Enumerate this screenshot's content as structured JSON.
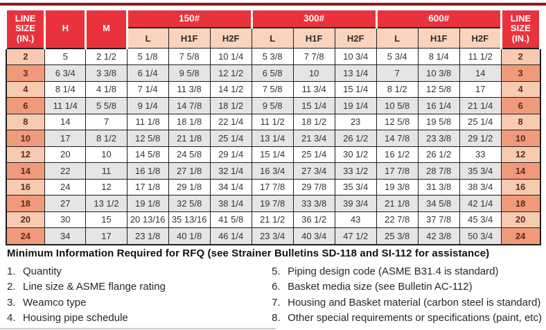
{
  "colors": {
    "header_red": "#e8323c",
    "top_strip_maroon": "#8e191c",
    "subheader_peach": "#f9d3bc",
    "line_col_light": "#f7cbb1",
    "line_col_dark": "#f19a7b",
    "stripe_gray": "#e5e5e5"
  },
  "table": {
    "header": {
      "line_size_left": "LINE SIZE (IN.)",
      "h": "H",
      "m": "M",
      "groups": [
        {
          "label": "150#"
        },
        {
          "label": "300#"
        },
        {
          "label": "600#"
        }
      ],
      "sub_columns": [
        "L",
        "H1F",
        "H2F"
      ],
      "line_size_right": "LINE SIZE (IN.)"
    },
    "rows": [
      {
        "line_size": "2",
        "h": "5",
        "m": "2 1/2",
        "c150": [
          "5 1/8",
          "7 5/8",
          "10 1/4"
        ],
        "c300": [
          "5 3/8",
          "7 7/8",
          "10 3/4"
        ],
        "c600": [
          "5 3/4",
          "8 1/4",
          "11 1/2"
        ]
      },
      {
        "line_size": "3",
        "h": "6 3/4",
        "m": "3 3/8",
        "c150": [
          "6 1/4",
          "9 5/8",
          "12 1/2"
        ],
        "c300": [
          "6 5/8",
          "10",
          "13 1/4"
        ],
        "c600": [
          "7",
          "10 3/8",
          "14"
        ]
      },
      {
        "line_size": "4",
        "h": "8 1/4",
        "m": "4 1/8",
        "c150": [
          "7 1/4",
          "11 3/8",
          "14 1/2"
        ],
        "c300": [
          "7 5/8",
          "11 3/4",
          "15 1/4"
        ],
        "c600": [
          "8 1/2",
          "12 5/8",
          "17"
        ]
      },
      {
        "line_size": "6",
        "h": "11 1/4",
        "m": "5 5/8",
        "c150": [
          "9 1/4",
          "14 7/8",
          "18 1/2"
        ],
        "c300": [
          "9 5/8",
          "15 1/4",
          "19 1/4"
        ],
        "c600": [
          "10 5/8",
          "16 1/4",
          "21 1/4"
        ]
      },
      {
        "line_size": "8",
        "h": "14",
        "m": "7",
        "c150": [
          "11 1/8",
          "18 1/8",
          "22 1/4"
        ],
        "c300": [
          "11 1/2",
          "18 1/2",
          "23"
        ],
        "c600": [
          "12 5/8",
          "19 5/8",
          "25 1/4"
        ]
      },
      {
        "line_size": "10",
        "h": "17",
        "m": "8 1/2",
        "c150": [
          "12 5/8",
          "21 1/8",
          "25 1/4"
        ],
        "c300": [
          "13 1/4",
          "21 3/4",
          "26 1/2"
        ],
        "c600": [
          "14 7/8",
          "23 3/8",
          "29 1/2"
        ]
      },
      {
        "line_size": "12",
        "h": "20",
        "m": "10",
        "c150": [
          "14 5/8",
          "24 5/8",
          "29 1/4"
        ],
        "c300": [
          "15 1/4",
          "25 1/4",
          "30 1/2"
        ],
        "c600": [
          "16 1/2",
          "26 1/2",
          "33"
        ]
      },
      {
        "line_size": "14",
        "h": "22",
        "m": "11",
        "c150": [
          "16 1/8",
          "27 1/8",
          "32 1/4"
        ],
        "c300": [
          "16 3/4",
          "27 3/4",
          "33 1/2"
        ],
        "c600": [
          "17 7/8",
          "28 7/8",
          "35 3/4"
        ]
      },
      {
        "line_size": "16",
        "h": "24",
        "m": "12",
        "c150": [
          "17 1/8",
          "29 1/8",
          "34 1/4"
        ],
        "c300": [
          "17 7/8",
          "29 7/8",
          "35 3/4"
        ],
        "c600": [
          "19 3/8",
          "31 3/8",
          "38 3/4"
        ]
      },
      {
        "line_size": "18",
        "h": "27",
        "m": "13 1/2",
        "c150": [
          "19 1/8",
          "32 5/8",
          "38 1/4"
        ],
        "c300": [
          "19 7/8",
          "33 3/8",
          "39 3/4"
        ],
        "c600": [
          "21 1/8",
          "34 5/8",
          "42 1/4"
        ]
      },
      {
        "line_size": "20",
        "h": "30",
        "m": "15",
        "c150": [
          "20 13/16",
          "35 13/16",
          "41 5/8"
        ],
        "c300": [
          "21 1/2",
          "36 1/2",
          "43"
        ],
        "c600": [
          "22 7/8",
          "37 7/8",
          "45 3/4"
        ]
      },
      {
        "line_size": "24",
        "h": "34",
        "m": "17",
        "c150": [
          "23 1/8",
          "40 1/8",
          "46 1/4"
        ],
        "c300": [
          "23 3/4",
          "40 3/4",
          "47 1/2"
        ],
        "c600": [
          "25 3/8",
          "42 3/8",
          "50 3/4"
        ]
      }
    ]
  },
  "rfq": {
    "title": "Minimum Information Required for RFQ (see Strainer Bulletins SD-118 and SI-112 for assistance)",
    "items_left": [
      {
        "num": "1.",
        "text": "Quantity"
      },
      {
        "num": "2.",
        "text": "Line size & ASME flange rating"
      },
      {
        "num": "3.",
        "text": "Weamco type"
      },
      {
        "num": "4.",
        "text": "Housing pipe schedule"
      }
    ],
    "items_right": [
      {
        "num": "5.",
        "text": "Piping design code (ASME B31.4 is standard)"
      },
      {
        "num": "6.",
        "text": "Basket media size (see Bulletin AC-112)"
      },
      {
        "num": "7.",
        "text": "Housing and Basket material (carbon steel is standard)"
      },
      {
        "num": "8.",
        "text": "Other special requirements or specifications (paint, etc)"
      }
    ]
  }
}
